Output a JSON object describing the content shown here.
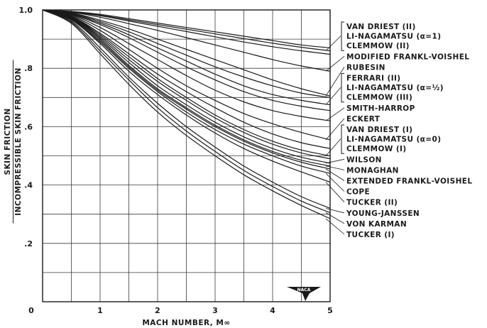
{
  "chart_data": {
    "type": "line",
    "title": "",
    "xlabel": "MACH NUMBER, M∞",
    "ylabel_numerator": "SKIN FRICTION",
    "ylabel_denominator": "INCOMPRESSIBLE SKIN FRICTION",
    "xlim": [
      0,
      5
    ],
    "ylim": [
      0,
      1.0
    ],
    "x_ticks": [
      0,
      1,
      2,
      3,
      4,
      5
    ],
    "x_tick_labels": [
      "0",
      "1",
      "2",
      "3",
      "4",
      "5"
    ],
    "y_ticks": [
      0.2,
      0.4,
      0.6,
      0.8,
      1.0
    ],
    "y_tick_labels": [
      ".2",
      ".4",
      ".6",
      ".8",
      "1.0"
    ],
    "grid": true,
    "x": [
      0,
      0.5,
      1,
      1.5,
      2,
      2.5,
      3,
      3.5,
      4,
      4.5,
      5
    ],
    "series": [
      {
        "name": "VAN DRIEST (II)",
        "values": [
          1.0,
          0.995,
          0.985,
          0.97,
          0.955,
          0.94,
          0.925,
          0.91,
          0.895,
          0.88,
          0.87
        ]
      },
      {
        "name": "LI-NAGAMATSU (α=1)",
        "values": [
          1.0,
          0.994,
          0.982,
          0.966,
          0.95,
          0.934,
          0.918,
          0.902,
          0.886,
          0.872,
          0.86
        ]
      },
      {
        "name": "CLEMMOW (II)",
        "values": [
          1.0,
          0.993,
          0.98,
          0.962,
          0.944,
          0.926,
          0.908,
          0.89,
          0.874,
          0.86,
          0.848
        ]
      },
      {
        "name": "MODIFIED FRANKL-VOISHEL",
        "values": [
          1.0,
          0.992,
          0.975,
          0.953,
          0.93,
          0.905,
          0.88,
          0.855,
          0.83,
          0.808,
          0.79
        ]
      },
      {
        "name": "RUBESIN",
        "values": [
          1.0,
          0.99,
          0.965,
          0.935,
          0.9,
          0.865,
          0.83,
          0.795,
          0.76,
          0.73,
          0.705
        ]
      },
      {
        "name": "FERRARI (II)",
        "values": [
          1.0,
          0.988,
          0.96,
          0.925,
          0.885,
          0.845,
          0.805,
          0.77,
          0.74,
          0.715,
          0.7
        ]
      },
      {
        "name": "LI-NAGAMATSU (α=½)",
        "values": [
          1.0,
          0.986,
          0.955,
          0.915,
          0.87,
          0.825,
          0.78,
          0.74,
          0.71,
          0.69,
          0.675
        ]
      },
      {
        "name": "CLEMMOW (III)",
        "values": [
          1.0,
          0.985,
          0.95,
          0.905,
          0.855,
          0.805,
          0.76,
          0.72,
          0.69,
          0.67,
          0.655
        ]
      },
      {
        "name": "SMITH-HARROP",
        "values": [
          1.0,
          0.983,
          0.94,
          0.885,
          0.83,
          0.775,
          0.725,
          0.685,
          0.655,
          0.635,
          0.62
        ]
      },
      {
        "name": "ECKERT",
        "values": [
          1.0,
          0.98,
          0.93,
          0.865,
          0.8,
          0.74,
          0.69,
          0.645,
          0.61,
          0.58,
          0.555
        ]
      },
      {
        "name": "VAN DRIEST (I)",
        "values": [
          1.0,
          0.978,
          0.92,
          0.85,
          0.78,
          0.72,
          0.665,
          0.615,
          0.575,
          0.545,
          0.525
        ]
      },
      {
        "name": "LI-NAGAMATSU (α=0)",
        "values": [
          1.0,
          0.976,
          0.915,
          0.84,
          0.765,
          0.7,
          0.64,
          0.59,
          0.55,
          0.52,
          0.5
        ]
      },
      {
        "name": "CLEMMOW (I)",
        "values": [
          1.0,
          0.975,
          0.91,
          0.83,
          0.755,
          0.69,
          0.63,
          0.58,
          0.54,
          0.51,
          0.49
        ]
      },
      {
        "name": "WILSON",
        "values": [
          1.0,
          0.974,
          0.905,
          0.82,
          0.74,
          0.675,
          0.615,
          0.565,
          0.525,
          0.495,
          0.475
        ]
      },
      {
        "name": "MONAGHAN",
        "values": [
          1.0,
          0.972,
          0.9,
          0.81,
          0.73,
          0.665,
          0.605,
          0.555,
          0.515,
          0.485,
          0.465
        ]
      },
      {
        "name": "EXTENDED FRANKL-VOISHEL",
        "values": [
          1.0,
          0.97,
          0.895,
          0.805,
          0.725,
          0.66,
          0.6,
          0.55,
          0.51,
          0.478,
          0.455
        ]
      },
      {
        "name": "COPE",
        "values": [
          1.0,
          0.968,
          0.89,
          0.8,
          0.72,
          0.65,
          0.59,
          0.54,
          0.5,
          0.465,
          0.44
        ]
      },
      {
        "name": "TUCKER (II)",
        "values": [
          1.0,
          0.966,
          0.885,
          0.79,
          0.71,
          0.64,
          0.578,
          0.525,
          0.482,
          0.445,
          0.41
        ]
      },
      {
        "name": "YOUNG-JANSSEN",
        "values": [
          1.0,
          0.962,
          0.87,
          0.77,
          0.68,
          0.6,
          0.53,
          0.465,
          0.41,
          0.36,
          0.32
        ]
      },
      {
        "name": "VON KARMAN",
        "values": [
          1.0,
          0.958,
          0.86,
          0.76,
          0.665,
          0.585,
          0.515,
          0.45,
          0.395,
          0.345,
          0.305
        ]
      },
      {
        "name": "TUCKER (I)",
        "values": [
          1.0,
          0.954,
          0.85,
          0.745,
          0.65,
          0.57,
          0.5,
          0.435,
          0.38,
          0.33,
          0.285
        ]
      }
    ],
    "legend_placement": "right",
    "legend_groups": [
      {
        "bracket": true,
        "labels": [
          "VAN DRIEST (II)",
          "LI-NAGAMATSU (α=1)",
          "CLEMMOW (II)"
        ]
      },
      {
        "bracket": false,
        "labels": [
          "MODIFIED FRANKL-VOISHEL"
        ]
      },
      {
        "bracket": false,
        "labels": [
          "RUBESIN"
        ]
      },
      {
        "bracket": true,
        "labels": [
          "FERRARI (II)",
          "LI-NAGAMATSU (α=½)",
          "CLEMMOW (III)"
        ]
      },
      {
        "bracket": false,
        "labels": [
          "SMITH-HARROP"
        ]
      },
      {
        "bracket": false,
        "labels": [
          "ECKERT"
        ]
      },
      {
        "bracket": true,
        "labels": [
          "VAN DRIEST (I)",
          "LI-NAGAMATSU (α=0)",
          "CLEMMOW (I)"
        ]
      },
      {
        "bracket": false,
        "labels": [
          "WILSON"
        ]
      },
      {
        "bracket": false,
        "labels": [
          "MONAGHAN"
        ]
      },
      {
        "bracket": false,
        "labels": [
          "EXTENDED FRANKL-VOISHEL"
        ]
      },
      {
        "bracket": false,
        "labels": [
          "COPE"
        ]
      },
      {
        "bracket": false,
        "labels": [
          "TUCKER (II)"
        ]
      },
      {
        "bracket": false,
        "labels": [
          "YOUNG-JANSSEN"
        ]
      },
      {
        "bracket": false,
        "labels": [
          "VON KARMAN"
        ]
      },
      {
        "bracket": false,
        "labels": [
          "TUCKER (I)"
        ]
      }
    ],
    "logo_text": "NACA"
  }
}
